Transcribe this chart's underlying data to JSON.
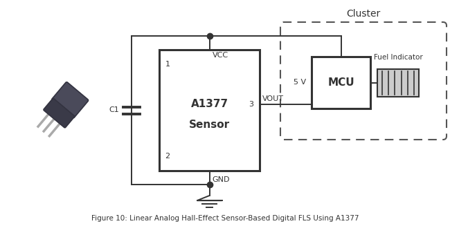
{
  "title": "Figure 10: Linear Analog Hall-Effect Sensor-Based Digital FLS Using A1377",
  "bg_color": "#ffffff",
  "line_color": "#333333",
  "dashed_color": "#555555",
  "text_color": "#333333",
  "sensor_label_line1": "A1377",
  "sensor_label_line2": "Sensor",
  "mcu_label": "MCU",
  "cluster_label": "Cluster",
  "vcc_label": "VCC",
  "gnd_label": "GND",
  "vout_label": "VOUT",
  "c1_label": "C1",
  "pin1_label": "1",
  "pin2_label": "2",
  "pin3_label": "3",
  "fiveV_label": "5 V",
  "fuel_label": "Fuel Indicator",
  "chip_body_color": "#555566",
  "chip_lead_color": "#aaaaaa",
  "fuel_indicator_fill": "#cccccc"
}
